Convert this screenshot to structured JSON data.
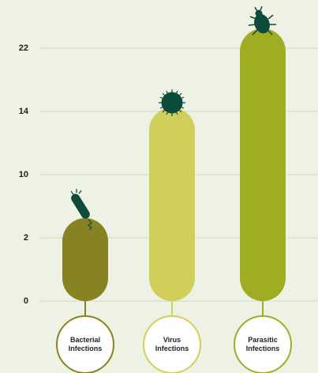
{
  "chart_data": {
    "type": "bar",
    "categories": [
      "Bacterial Infections",
      "Virus Infections",
      "Parasitic Infections"
    ],
    "values": [
      2,
      13,
      22
    ],
    "colors": [
      "#878324",
      "#d0cf5a",
      "#a0ac22"
    ],
    "ylim": [
      0,
      22
    ],
    "yticks": [
      0,
      2,
      10,
      14,
      22
    ],
    "grid": true
  }
}
